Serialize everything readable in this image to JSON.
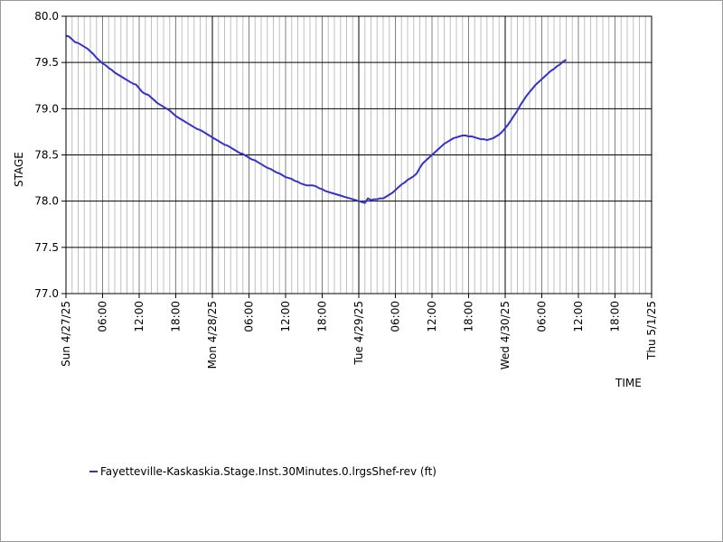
{
  "chart_data": {
    "type": "line",
    "title": "",
    "xlabel": "TIME",
    "ylabel": "STAGE",
    "ylim": [
      77.0,
      80.0
    ],
    "yticks": [
      "77.0",
      "77.5",
      "78.0",
      "78.5",
      "79.0",
      "79.5",
      "80.0"
    ],
    "x_range_hours": [
      0,
      96
    ],
    "x_ticks": [
      {
        "label": "Sun 4/27/25",
        "major": true
      },
      {
        "label": "06:00",
        "major": false
      },
      {
        "label": "12:00",
        "major": false
      },
      {
        "label": "18:00",
        "major": false
      },
      {
        "label": "Mon 4/28/25",
        "major": true
      },
      {
        "label": "06:00",
        "major": false
      },
      {
        "label": "12:00",
        "major": false
      },
      {
        "label": "18:00",
        "major": false
      },
      {
        "label": "Tue 4/29/25",
        "major": true
      },
      {
        "label": "06:00",
        "major": false
      },
      {
        "label": "12:00",
        "major": false
      },
      {
        "label": "18:00",
        "major": false
      },
      {
        "label": "Wed 4/30/25",
        "major": true
      },
      {
        "label": "06:00",
        "major": false
      },
      {
        "label": "12:00",
        "major": false
      },
      {
        "label": "18:00",
        "major": false
      },
      {
        "label": "Thu 5/1/25",
        "major": true
      }
    ],
    "grid": true,
    "legend_position": "bottom-left",
    "series": [
      {
        "name": "Fayetteville-Kaskaskia.Stage.Inst.30Minutes.0.lrgsShef-rev (ft)",
        "color": "#3333cc",
        "points": [
          [
            0,
            79.79
          ],
          [
            0.5,
            79.78
          ],
          [
            1,
            79.75
          ],
          [
            1.5,
            79.72
          ],
          [
            2,
            79.71
          ],
          [
            2.5,
            79.69
          ],
          [
            3,
            79.67
          ],
          [
            3.5,
            79.65
          ],
          [
            4,
            79.62
          ],
          [
            4.5,
            79.59
          ],
          [
            5,
            79.55
          ],
          [
            5.5,
            79.52
          ],
          [
            6,
            79.49
          ],
          [
            6.5,
            79.47
          ],
          [
            7,
            79.44
          ],
          [
            7.5,
            79.42
          ],
          [
            8,
            79.39
          ],
          [
            8.5,
            79.37
          ],
          [
            9,
            79.35
          ],
          [
            9.5,
            79.33
          ],
          [
            10,
            79.31
          ],
          [
            10.5,
            79.29
          ],
          [
            11,
            79.27
          ],
          [
            11.5,
            79.26
          ],
          [
            12,
            79.22
          ],
          [
            12.5,
            79.18
          ],
          [
            13,
            79.16
          ],
          [
            13.5,
            79.15
          ],
          [
            14,
            79.12
          ],
          [
            14.5,
            79.09
          ],
          [
            15,
            79.06
          ],
          [
            15.5,
            79.04
          ],
          [
            16,
            79.02
          ],
          [
            16.5,
            79.0
          ],
          [
            17,
            78.98
          ],
          [
            17.5,
            78.95
          ],
          [
            18,
            78.92
          ],
          [
            18.5,
            78.9
          ],
          [
            19,
            78.88
          ],
          [
            19.5,
            78.86
          ],
          [
            20,
            78.84
          ],
          [
            20.5,
            78.82
          ],
          [
            21,
            78.8
          ],
          [
            21.5,
            78.78
          ],
          [
            22,
            78.77
          ],
          [
            22.5,
            78.75
          ],
          [
            23,
            78.73
          ],
          [
            23.5,
            78.71
          ],
          [
            24,
            78.69
          ],
          [
            24.5,
            78.67
          ],
          [
            25,
            78.65
          ],
          [
            25.5,
            78.63
          ],
          [
            26,
            78.61
          ],
          [
            26.5,
            78.6
          ],
          [
            27,
            78.58
          ],
          [
            27.5,
            78.56
          ],
          [
            28,
            78.54
          ],
          [
            28.5,
            78.52
          ],
          [
            29,
            78.51
          ],
          [
            29.5,
            78.49
          ],
          [
            30,
            78.47
          ],
          [
            30.5,
            78.45
          ],
          [
            31,
            78.44
          ],
          [
            31.5,
            78.42
          ],
          [
            32,
            78.4
          ],
          [
            32.5,
            78.38
          ],
          [
            33,
            78.36
          ],
          [
            33.5,
            78.35
          ],
          [
            34,
            78.33
          ],
          [
            34.5,
            78.31
          ],
          [
            35,
            78.3
          ],
          [
            35.5,
            78.28
          ],
          [
            36,
            78.26
          ],
          [
            36.5,
            78.25
          ],
          [
            37,
            78.24
          ],
          [
            37.5,
            78.22
          ],
          [
            38,
            78.21
          ],
          [
            38.5,
            78.19
          ],
          [
            39,
            78.18
          ],
          [
            39.5,
            78.17
          ],
          [
            40,
            78.17
          ],
          [
            40.5,
            78.17
          ],
          [
            41,
            78.16
          ],
          [
            41.5,
            78.14
          ],
          [
            42,
            78.13
          ],
          [
            42.5,
            78.11
          ],
          [
            43,
            78.1
          ],
          [
            43.5,
            78.09
          ],
          [
            44,
            78.08
          ],
          [
            44.5,
            78.07
          ],
          [
            45,
            78.06
          ],
          [
            45.5,
            78.05
          ],
          [
            46,
            78.04
          ],
          [
            46.5,
            78.03
          ],
          [
            47,
            78.02
          ],
          [
            47.5,
            78.01
          ],
          [
            48,
            78.0
          ],
          [
            48.5,
            77.99
          ],
          [
            49,
            77.98
          ],
          [
            49.5,
            78.03
          ],
          [
            50,
            78.01
          ],
          [
            50.5,
            78.02
          ],
          [
            51,
            78.02
          ],
          [
            51.5,
            78.03
          ],
          [
            52,
            78.03
          ],
          [
            52.5,
            78.05
          ],
          [
            53,
            78.07
          ],
          [
            53.5,
            78.09
          ],
          [
            54,
            78.12
          ],
          [
            54.5,
            78.15
          ],
          [
            55,
            78.18
          ],
          [
            55.5,
            78.2
          ],
          [
            56,
            78.23
          ],
          [
            56.5,
            78.25
          ],
          [
            57,
            78.27
          ],
          [
            57.5,
            78.3
          ],
          [
            58,
            78.36
          ],
          [
            58.5,
            78.41
          ],
          [
            59,
            78.44
          ],
          [
            59.5,
            78.47
          ],
          [
            60,
            78.5
          ],
          [
            60.5,
            78.53
          ],
          [
            61,
            78.56
          ],
          [
            61.5,
            78.59
          ],
          [
            62,
            78.62
          ],
          [
            62.5,
            78.64
          ],
          [
            63,
            78.66
          ],
          [
            63.5,
            78.68
          ],
          [
            64,
            78.69
          ],
          [
            64.5,
            78.7
          ],
          [
            65,
            78.71
          ],
          [
            65.5,
            78.71
          ],
          [
            66,
            78.7
          ],
          [
            66.5,
            78.7
          ],
          [
            67,
            78.69
          ],
          [
            67.5,
            78.68
          ],
          [
            68,
            78.67
          ],
          [
            68.5,
            78.67
          ],
          [
            69,
            78.66
          ],
          [
            69.5,
            78.67
          ],
          [
            70,
            78.68
          ],
          [
            70.5,
            78.7
          ],
          [
            71,
            78.72
          ],
          [
            71.5,
            78.75
          ],
          [
            72,
            78.79
          ],
          [
            72.5,
            78.83
          ],
          [
            73,
            78.88
          ],
          [
            73.5,
            78.93
          ],
          [
            74,
            78.98
          ],
          [
            74.5,
            79.04
          ],
          [
            75,
            79.09
          ],
          [
            75.5,
            79.14
          ],
          [
            76,
            79.18
          ],
          [
            76.5,
            79.22
          ],
          [
            77,
            79.26
          ],
          [
            77.5,
            79.29
          ],
          [
            78,
            79.32
          ],
          [
            78.5,
            79.35
          ],
          [
            79,
            79.38
          ],
          [
            79.5,
            79.41
          ],
          [
            80,
            79.43
          ],
          [
            80.5,
            79.46
          ],
          [
            81,
            79.48
          ],
          [
            81.5,
            79.51
          ],
          [
            82,
            79.53
          ]
        ]
      }
    ]
  }
}
